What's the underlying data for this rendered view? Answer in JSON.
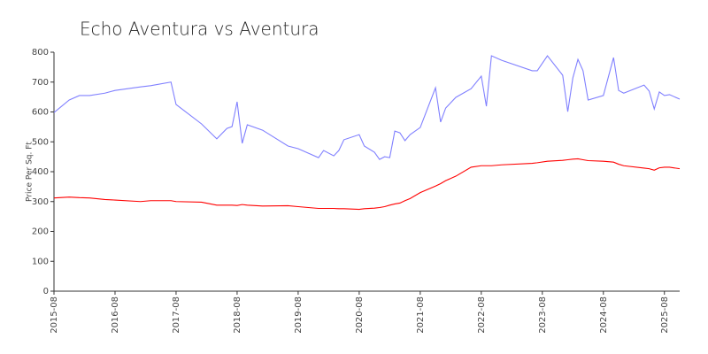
{
  "chart_data": {
    "type": "line",
    "title": "Echo Aventura vs Aventura",
    "y_label": "Price Per Sq. Ft",
    "x": [
      "2015-08",
      "2015-11",
      "2016-01",
      "2016-03",
      "2016-06",
      "2016-08",
      "2017-01",
      "2017-03",
      "2017-07",
      "2017-08",
      "2018-01",
      "2018-04",
      "2018-06",
      "2018-07",
      "2018-08",
      "2018-09",
      "2018-10",
      "2019-01",
      "2019-06",
      "2019-08",
      "2019-12",
      "2020-01",
      "2020-03",
      "2020-04",
      "2020-05",
      "2020-08",
      "2020-09",
      "2020-11",
      "2020-12",
      "2021-01",
      "2021-02",
      "2021-03",
      "2021-04",
      "2021-05",
      "2021-06",
      "2021-08",
      "2021-11",
      "2021-12",
      "2022-01",
      "2022-03",
      "2022-06",
      "2022-08",
      "2022-09",
      "2022-10",
      "2022-12",
      "2023-06",
      "2023-07",
      "2023-09",
      "2023-12",
      "2024-01",
      "2024-02",
      "2024-03",
      "2024-04",
      "2024-05",
      "2024-08",
      "2024-10",
      "2024-11",
      "2024-12",
      "2025-04",
      "2025-05",
      "2025-06",
      "2025-07",
      "2025-08",
      "2025-09",
      "2025-11"
    ],
    "series": [
      {
        "color": "#8080ff",
        "values": [
          598,
          640,
          655,
          655,
          663,
          672,
          684,
          688,
          700,
          625,
          560,
          510,
          545,
          551,
          634,
          495,
          557,
          539,
          486,
          477,
          447,
          471,
          453,
          471,
          507,
          524,
          486,
          465,
          441,
          450,
          447,
          536,
          530,
          504,
          524,
          548,
          681,
          566,
          613,
          649,
          678,
          720,
          619,
          788,
          773,
          738,
          738,
          788,
          723,
          601,
          714,
          776,
          738,
          640,
          655,
          782,
          672,
          663,
          690,
          670,
          610,
          667,
          655,
          658,
          643
        ]
      },
      {
        "color": "#ff0000",
        "values": [
          312,
          315,
          313,
          312,
          307,
          305,
          300,
          303,
          303,
          300,
          298,
          288,
          288,
          288,
          287,
          290,
          288,
          285,
          286,
          283,
          277,
          277,
          277,
          276,
          276,
          274,
          276,
          278,
          280,
          283,
          288,
          292,
          295,
          303,
          310,
          330,
          352,
          360,
          370,
          385,
          415,
          420,
          420,
          420,
          423,
          428,
          430,
          435,
          438,
          440,
          442,
          443,
          440,
          437,
          435,
          432,
          425,
          420,
          412,
          410,
          405,
          413,
          415,
          415,
          410
        ]
      }
    ],
    "xlim": [
      "2015-08",
      "2025-11"
    ],
    "xticks": [
      "2015-08",
      "2016-08",
      "2017-08",
      "2018-08",
      "2019-08",
      "2020-08",
      "2021-08",
      "2022-08",
      "2023-08",
      "2024-08",
      "2025-08"
    ],
    "ylim": [
      0,
      800
    ],
    "yticks": [
      0,
      100,
      200,
      300,
      400,
      500,
      600,
      700,
      800
    ],
    "grid": false
  }
}
